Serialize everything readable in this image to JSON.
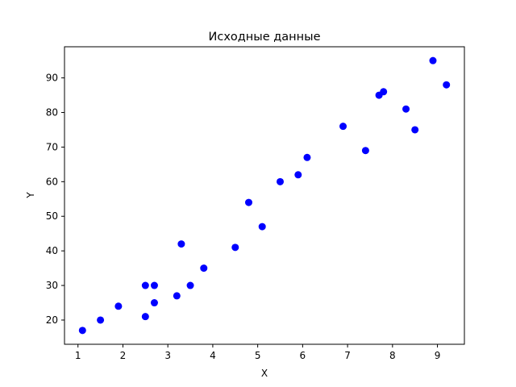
{
  "chart_data": {
    "type": "scatter",
    "title": "Исходные данные",
    "xlabel": "X",
    "ylabel": "Y",
    "xlim": [
      0.7,
      9.6
    ],
    "ylim": [
      13,
      99
    ],
    "xticks": [
      1,
      2,
      3,
      4,
      5,
      6,
      7,
      8,
      9
    ],
    "yticks": [
      20,
      30,
      40,
      50,
      60,
      70,
      80,
      90
    ],
    "grid": false,
    "color": "#0000ff",
    "points": [
      {
        "x": 1.1,
        "y": 17
      },
      {
        "x": 1.5,
        "y": 20
      },
      {
        "x": 1.9,
        "y": 24
      },
      {
        "x": 2.5,
        "y": 21
      },
      {
        "x": 2.5,
        "y": 30
      },
      {
        "x": 2.7,
        "y": 25
      },
      {
        "x": 2.7,
        "y": 30
      },
      {
        "x": 3.2,
        "y": 27
      },
      {
        "x": 3.3,
        "y": 42
      },
      {
        "x": 3.5,
        "y": 30
      },
      {
        "x": 3.8,
        "y": 35
      },
      {
        "x": 4.5,
        "y": 41
      },
      {
        "x": 4.8,
        "y": 54
      },
      {
        "x": 5.1,
        "y": 47
      },
      {
        "x": 5.5,
        "y": 60
      },
      {
        "x": 5.9,
        "y": 62
      },
      {
        "x": 6.1,
        "y": 67
      },
      {
        "x": 6.9,
        "y": 76
      },
      {
        "x": 7.4,
        "y": 69
      },
      {
        "x": 7.7,
        "y": 85
      },
      {
        "x": 7.8,
        "y": 86
      },
      {
        "x": 8.3,
        "y": 81
      },
      {
        "x": 8.5,
        "y": 75
      },
      {
        "x": 8.9,
        "y": 95
      },
      {
        "x": 9.2,
        "y": 88
      }
    ]
  }
}
